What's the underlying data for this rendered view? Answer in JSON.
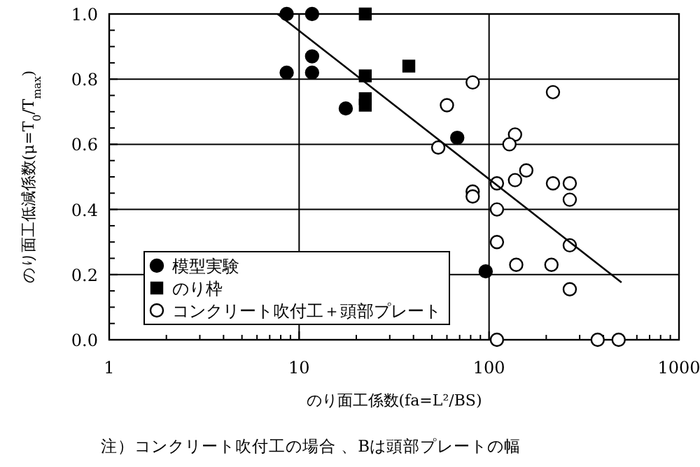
{
  "chart_data": {
    "type": "scatter",
    "xlabel": "のり面工係数(fa=L²/BS)",
    "ylabel": "のり面工低減係数(μ=T$_{0}$/T$_{max}$)",
    "annotations": [
      "注）コンクリート吹付工の場合 、Bは頭部プレートの幅"
    ],
    "log": "x",
    "xlim": [
      1,
      1000
    ],
    "xticks": [
      1,
      10,
      100,
      1000
    ],
    "ylim": [
      0,
      1
    ],
    "yticks": [
      {
        "value": 0,
        "label": "0.0"
      },
      {
        "value": 0.2,
        "label": "0.2"
      },
      {
        "value": 0.4,
        "label": "0.4"
      },
      {
        "value": 0.6,
        "label": "0.6"
      },
      {
        "value": 0.8,
        "label": "0.8"
      },
      {
        "value": 1,
        "label": "1.0"
      }
    ],
    "grid": true,
    "legend": "bottom left",
    "series": [
      {
        "name": "模型実験",
        "color": "#000000",
        "marker": "circle",
        "x": [
          8.6,
          11.7,
          8.6,
          11.7,
          11.7,
          17.6,
          68,
          96
        ],
        "values": [
          1.0,
          1.0,
          0.82,
          0.82,
          0.87,
          0.71,
          0.62,
          0.21
        ]
      },
      {
        "name": "のり枠",
        "color": "#000000",
        "marker": "square",
        "x": [
          22.3,
          22.3,
          22.3,
          22.3,
          37.8
        ],
        "values": [
          1.0,
          0.81,
          0.72,
          0.74,
          0.84
        ]
      },
      {
        "name": "コンクリート吹付工＋頭部プレート",
        "color": "#ffffff",
        "marker": "circle",
        "x": [
          82,
          217,
          60,
          137,
          128,
          54,
          157,
          137,
          110,
          217,
          266,
          266,
          82,
          82,
          110,
          110,
          266,
          139,
          213,
          266,
          110,
          373,
          481
        ],
        "values": [
          0.79,
          0.76,
          0.72,
          0.63,
          0.6,
          0.59,
          0.52,
          0.49,
          0.48,
          0.48,
          0.48,
          0.43,
          0.455,
          0.44,
          0.4,
          0.3,
          0.29,
          0.23,
          0.23,
          0.155,
          0.0,
          0.0,
          0.0
        ]
      },
      {
        "type": "line",
        "color": "#000000",
        "marker": "none",
        "x": [
          7.7,
          498
        ],
        "values": [
          1.0,
          0.176
        ]
      }
    ]
  }
}
